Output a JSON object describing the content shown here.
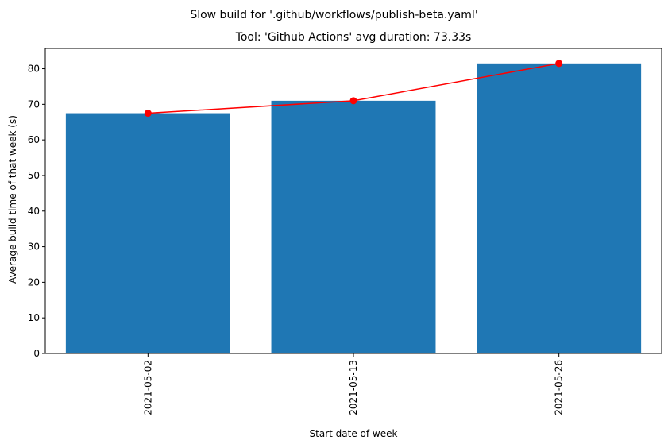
{
  "figure": {
    "suptitle": "Slow build for '.github/workflows/publish-beta.yaml'",
    "title": "Tool: 'Github Actions' avg duration: 73.33s"
  },
  "chart_data": {
    "type": "bar",
    "title": "Tool: 'Github Actions' avg duration: 73.33s",
    "suptitle": "Slow build for '.github/workflows/publish-beta.yaml'",
    "xlabel": "Start date of week",
    "ylabel": "Average build time of that week (s)",
    "categories": [
      "2021-05-02",
      "2021-05-13",
      "2021-05-26"
    ],
    "values": [
      67.5,
      71.0,
      81.5
    ],
    "ylim": [
      0,
      85.7
    ],
    "yticks": [
      0,
      10,
      20,
      30,
      40,
      50,
      60,
      70,
      80
    ],
    "grid": false,
    "bar_color": "#1f77b4",
    "overlay_line": {
      "type": "line",
      "color": "#ff0000",
      "marker": "circle",
      "values": [
        67.5,
        71.0,
        81.5
      ]
    }
  }
}
